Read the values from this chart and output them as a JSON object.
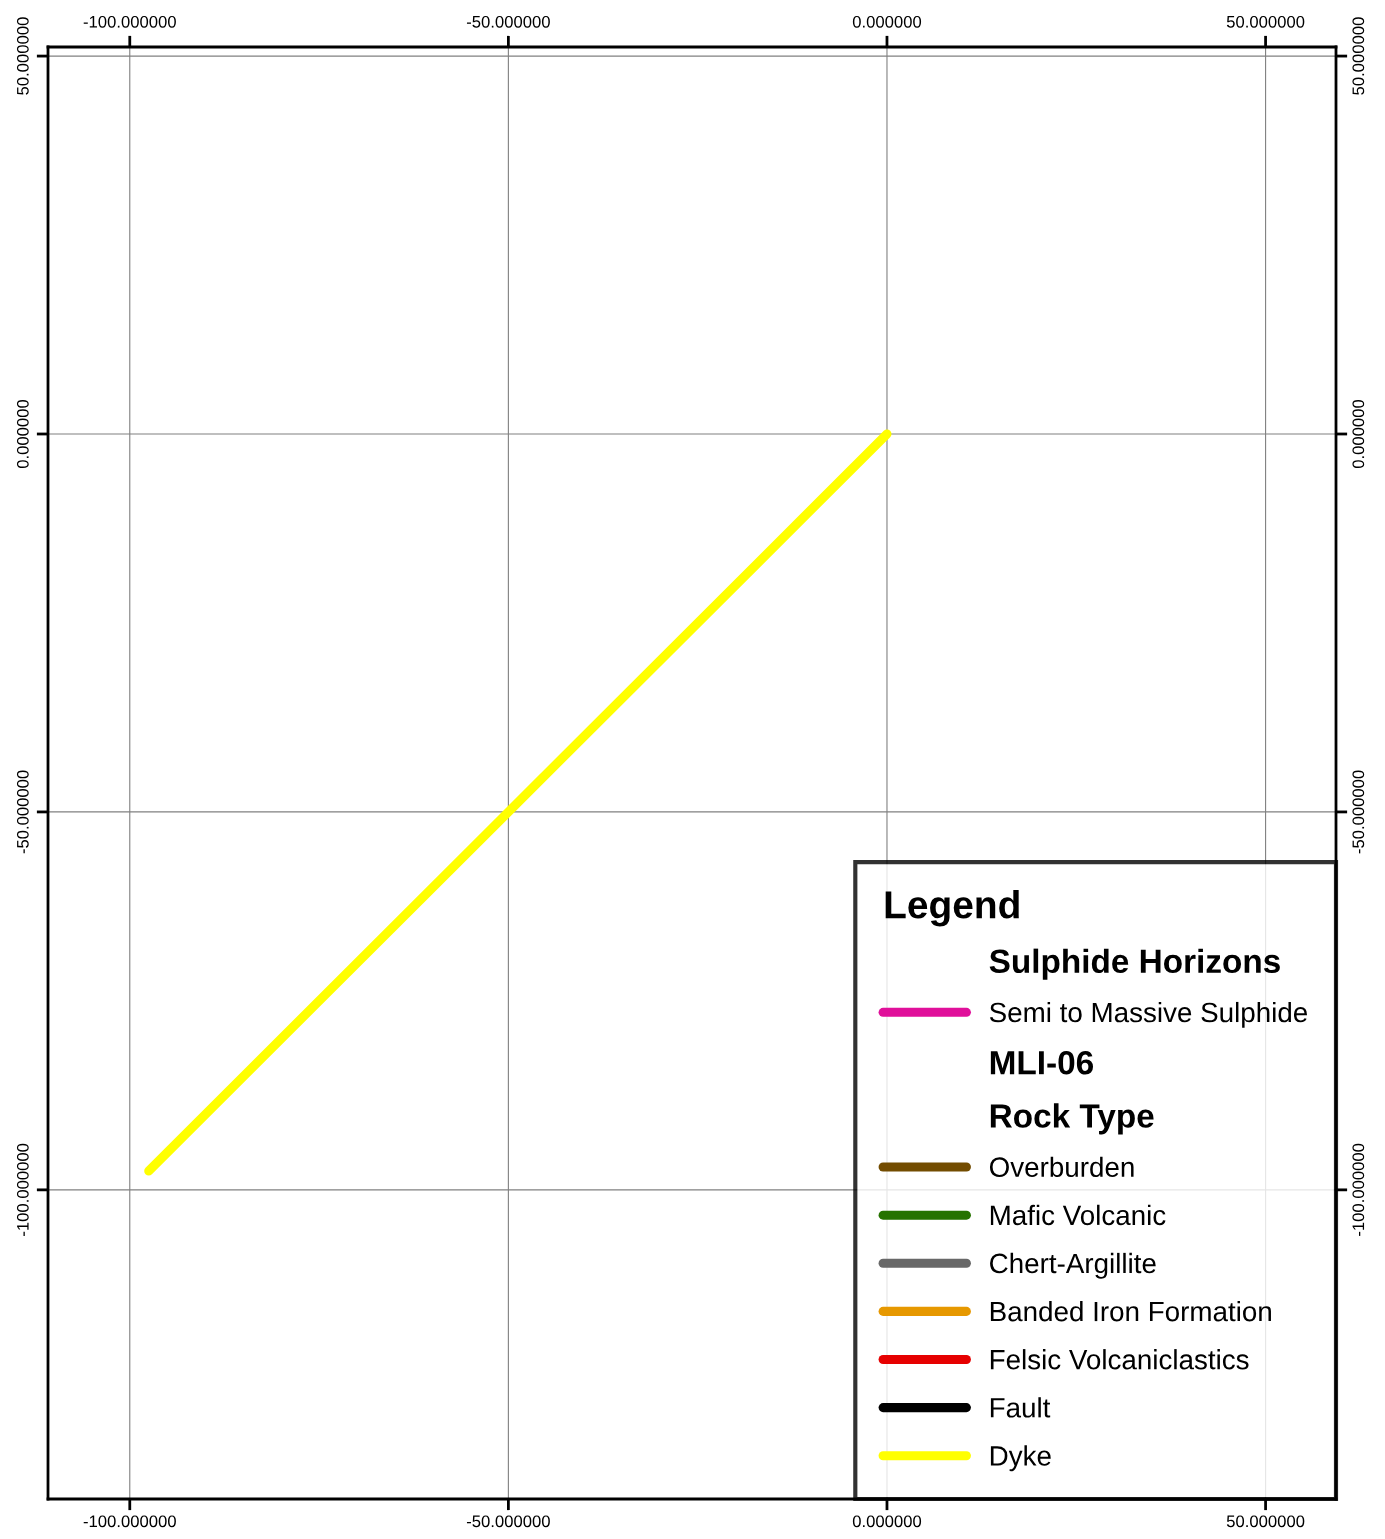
{
  "chart_data": {
    "type": "line",
    "legend_title": "Legend",
    "annotations": [
      "Sulphide Horizons",
      "MLI-06",
      "Rock Type"
    ],
    "xlim": [
      -110.8,
      59.3
    ],
    "ylim": [
      -140.9,
      51.2
    ],
    "xticks": [
      {
        "value": -100,
        "label": "-100.000000"
      },
      {
        "value": -50,
        "label": "-50.000000"
      },
      {
        "value": 0,
        "label": "0.000000"
      },
      {
        "value": 50,
        "label": "50.000000"
      }
    ],
    "yticks": [
      {
        "value": -100,
        "label": "-100.000000"
      },
      {
        "value": -50,
        "label": "-50.000000"
      },
      {
        "value": 0,
        "label": "0.000000"
      },
      {
        "value": 50,
        "label": "50.000000"
      }
    ],
    "grid": true,
    "legend": "bottom right",
    "marker": "none",
    "line_style": "solid",
    "series": [
      {
        "name": "Semi to Massive Sulphide",
        "color": "#e0109a"
      },
      {
        "name": "Overburden",
        "color": "#734c00"
      },
      {
        "name": "Mafic Volcanic",
        "color": "#267300"
      },
      {
        "name": "Chert-Argillite",
        "color": "#686868"
      },
      {
        "name": "Banded Iron Formation",
        "color": "#e69800"
      },
      {
        "name": "Felsic Volcaniclastics",
        "color": "#e60000"
      },
      {
        "name": "Fault",
        "color": "#000000"
      },
      {
        "name": "Dyke",
        "color": "#ffff00",
        "x": [
          0,
          -97.5
        ],
        "values": [
          0,
          -97.5
        ]
      }
    ]
  }
}
